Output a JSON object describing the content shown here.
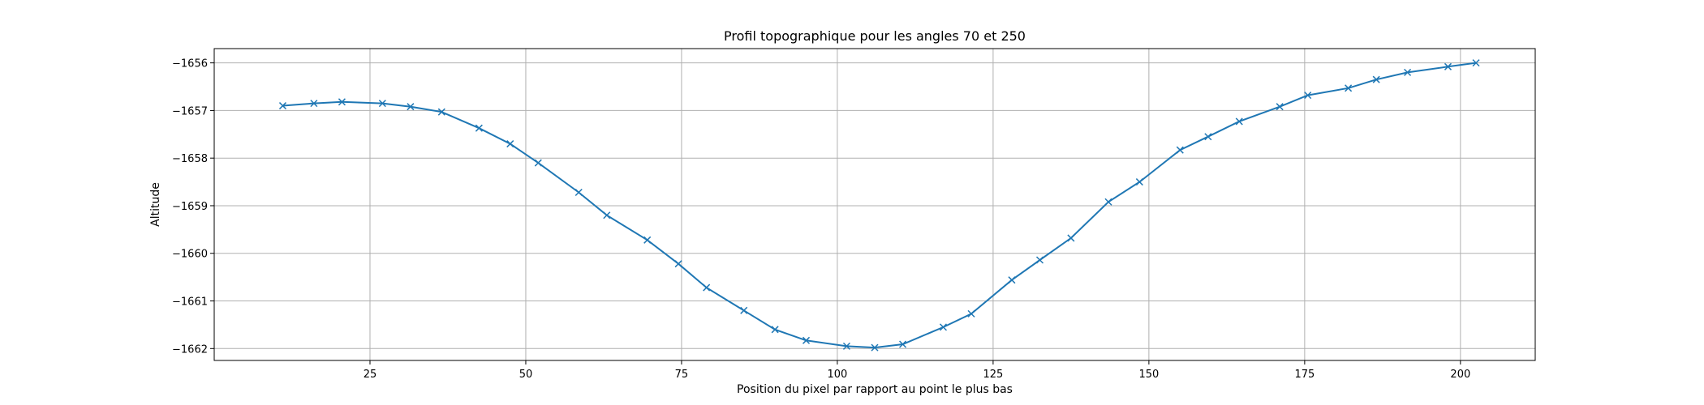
{
  "chart_data": {
    "type": "line",
    "title": "Profil topographique pour les angles 70 et 250",
    "xlabel": "Position du pixel par rapport au point le plus bas",
    "ylabel": "Altitude",
    "xlim": [
      0,
      212
    ],
    "ylim": [
      -1662.25,
      -1655.7
    ],
    "xticks": [
      25,
      50,
      75,
      100,
      125,
      150,
      175,
      200
    ],
    "yticks": [
      -1656,
      -1657,
      -1658,
      -1659,
      -1660,
      -1661,
      -1662
    ],
    "grid": true,
    "marker": "x",
    "colors": {
      "series": "#1f77b4",
      "grid": "#b0b0b0",
      "axes": "#000000"
    },
    "series": [
      {
        "x": [
          11,
          16,
          20.5,
          27,
          31.5,
          36.5,
          42.5,
          47.5,
          52,
          58.5,
          63,
          69.5,
          74.5,
          79,
          85,
          90,
          95,
          101.5,
          106,
          110.5,
          117,
          121.5,
          128,
          132.5,
          137.5,
          143.5,
          148.5,
          155,
          159.5,
          164.5,
          171,
          175.5,
          182,
          186.5,
          191.5,
          198,
          202.5
        ],
        "y": [
          -1656.9,
          -1656.85,
          -1656.82,
          -1656.85,
          -1656.92,
          -1657.03,
          -1657.37,
          -1657.7,
          -1658.1,
          -1658.72,
          -1659.2,
          -1659.72,
          -1660.22,
          -1660.72,
          -1661.2,
          -1661.6,
          -1661.83,
          -1661.95,
          -1661.98,
          -1661.91,
          -1661.55,
          -1661.27,
          -1660.56,
          -1660.14,
          -1659.68,
          -1658.92,
          -1658.5,
          -1657.83,
          -1657.55,
          -1657.23,
          -1656.92,
          -1656.68,
          -1656.53,
          -1656.35,
          -1656.2,
          -1656.08,
          -1656.0
        ]
      }
    ]
  }
}
